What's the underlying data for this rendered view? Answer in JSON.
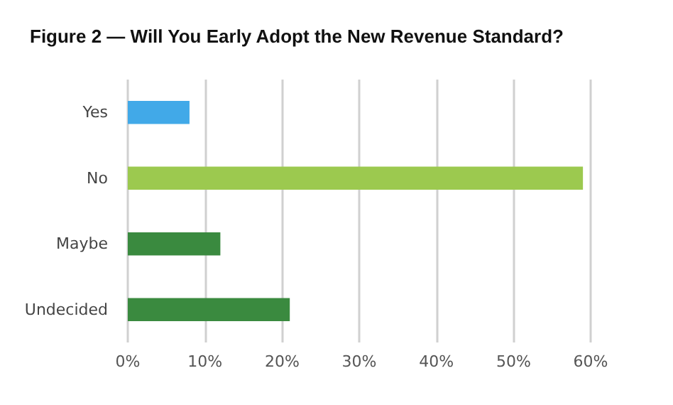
{
  "chart_data": {
    "type": "bar",
    "orientation": "horizontal",
    "title": "Figure 2 — Will You Early Adopt the New Revenue Standard?",
    "categories": [
      "Yes",
      "No",
      "Maybe",
      "Undecided"
    ],
    "values": [
      8,
      59,
      12,
      21
    ],
    "colors": [
      "#41a9e8",
      "#9cc94f",
      "#3a8a3f",
      "#3a8a3f"
    ],
    "xlim": [
      0,
      60
    ],
    "xticks": [
      {
        "value": 0,
        "label": "0%"
      },
      {
        "value": 10,
        "label": "10%"
      },
      {
        "value": 20,
        "label": "20%"
      },
      {
        "value": 30,
        "label": "30%"
      },
      {
        "value": 40,
        "label": "40%"
      },
      {
        "value": 50,
        "label": "50%"
      },
      {
        "value": 60,
        "label": "60%"
      }
    ],
    "grid": "x"
  }
}
